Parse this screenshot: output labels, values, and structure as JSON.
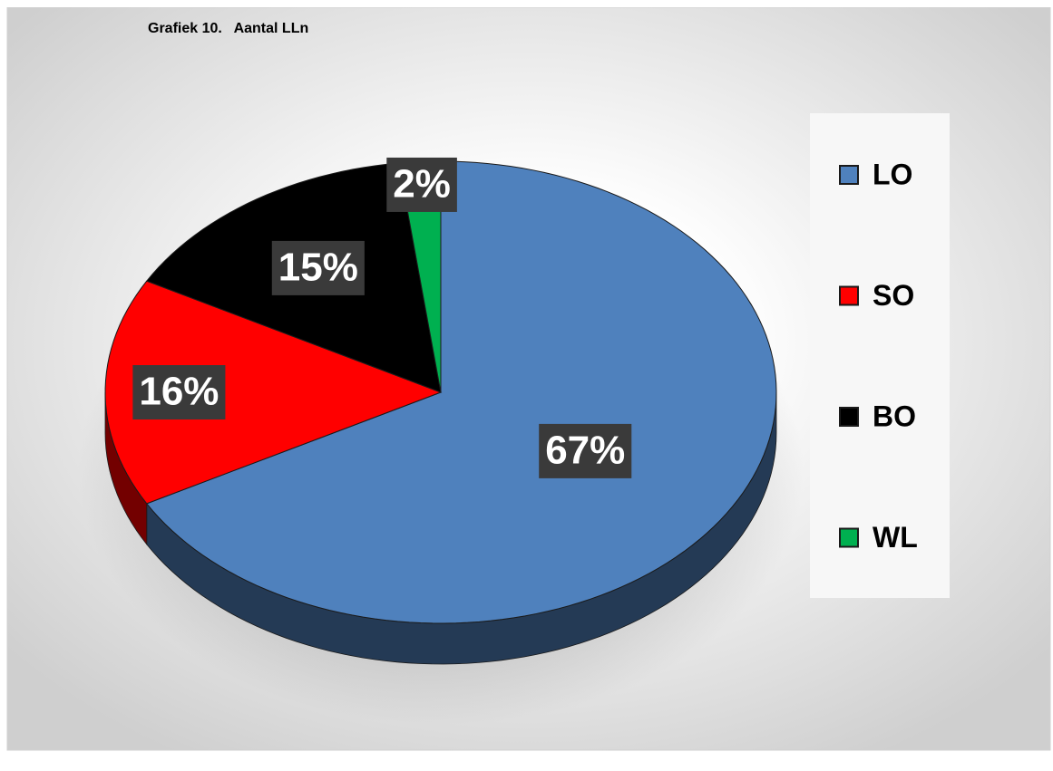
{
  "chart_data": {
    "type": "pie",
    "title": "Grafiek 10.   Aantal LLn",
    "categories": [
      "LO",
      "SO",
      "BO",
      "WL"
    ],
    "values": [
      67,
      16,
      15,
      2
    ],
    "value_labels": [
      "67%",
      "16%",
      "15%",
      "2%"
    ],
    "colors": [
      "#4f81bd",
      "#ff0000",
      "#000000",
      "#00b050"
    ],
    "legend": "right"
  }
}
